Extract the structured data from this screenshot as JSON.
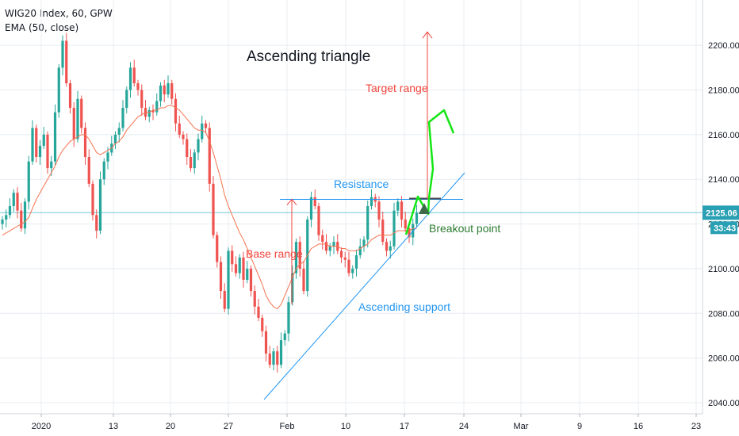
{
  "legend": {
    "symbol": "WIG20 Index, 60, GPW",
    "indicator": "EMA (50, close)"
  },
  "colors": {
    "up": "#26a69a",
    "down": "#ef5350",
    "ema": "#f4734f",
    "grid": "#e8ecf1",
    "axis_text": "#131722",
    "price_line": "#73c9d6",
    "price_tag": "#2aa0b4",
    "annotation_red": "#f2453d",
    "annotation_blue": "#2196f3",
    "projection_green": "#14e614",
    "breakout_text": "#2e7d32"
  },
  "chart_data": {
    "type": "candlestick",
    "title": "Ascending triangle",
    "symbol": "WIG20 Index, 60, GPW",
    "ylim": [
      2035,
      2225
    ],
    "yticks": [
      2040,
      2060,
      2080,
      2100,
      2120,
      2140,
      2160,
      2180,
      2200
    ],
    "xticks": [
      "2020",
      "13",
      "20",
      "27",
      "Feb",
      "10",
      "17",
      "24",
      "Mar",
      "9",
      "16",
      "23"
    ],
    "last_price": "2125.06",
    "countdown": "33:43",
    "closes": [
      2122,
      2124,
      2128,
      2134,
      2126,
      2118,
      2130,
      2148,
      2163,
      2150,
      2155,
      2160,
      2145,
      2148,
      2170,
      2190,
      2202,
      2183,
      2172,
      2158,
      2176,
      2163,
      2150,
      2138,
      2124,
      2117,
      2140,
      2148,
      2152,
      2156,
      2160,
      2163,
      2172,
      2180,
      2190,
      2183,
      2180,
      2172,
      2168,
      2171,
      2170,
      2175,
      2182,
      2178,
      2183,
      2176,
      2165,
      2160,
      2158,
      2150,
      2145,
      2152,
      2158,
      2165,
      2163,
      2138,
      2115,
      2103,
      2090,
      2082,
      2108,
      2102,
      2098,
      2105,
      2095,
      2100,
      2090,
      2083,
      2078,
      2072,
      2062,
      2057,
      2063,
      2057,
      2068,
      2071,
      2085,
      2098,
      2112,
      2100,
      2090,
      2122,
      2132,
      2128,
      2115,
      2112,
      2108,
      2110,
      2112,
      2108,
      2105,
      2104,
      2098,
      2100,
      2106,
      2110,
      2113,
      2128,
      2132,
      2130,
      2122,
      2112,
      2108,
      2110,
      2126,
      2130,
      2122,
      2118,
      2114,
      2120,
      2125
    ],
    "ema50": [
      2115,
      2116,
      2117,
      2118,
      2119,
      2120,
      2121,
      2123,
      2127,
      2131,
      2134,
      2137,
      2140,
      2143,
      2146,
      2150,
      2153,
      2155,
      2157,
      2158,
      2159,
      2160,
      2160,
      2158,
      2155,
      2152,
      2151,
      2152,
      2153,
      2154,
      2156,
      2157,
      2159,
      2162,
      2164,
      2166,
      2168,
      2169,
      2170,
      2170,
      2171,
      2171,
      2172,
      2172,
      2173,
      2173,
      2172,
      2171,
      2169,
      2167,
      2165,
      2163,
      2162,
      2162,
      2161,
      2157,
      2152,
      2146,
      2140,
      2133,
      2128,
      2124,
      2120,
      2116,
      2113,
      2109,
      2105,
      2101,
      2097,
      2093,
      2088,
      2085,
      2083,
      2082,
      2084,
      2088,
      2092,
      2096,
      2100,
      2102,
      2103,
      2106,
      2109,
      2110,
      2111,
      2111,
      2111,
      2110,
      2110,
      2110,
      2109,
      2109,
      2108,
      2108,
      2108,
      2109,
      2110,
      2111,
      2113,
      2114,
      2115,
      2115,
      2115,
      2115,
      2116,
      2117,
      2117,
      2117,
      2117,
      2118,
      2118
    ],
    "annotations": {
      "title": "Ascending triangle",
      "resistance": "Resistance",
      "base_range": "Base range",
      "target_range": "Target range",
      "ascending_support": "Ascending support",
      "breakout_point": "Breakout point"
    },
    "levels": {
      "resistance": 2131,
      "base_range_from": 2084,
      "base_range_to": 2131,
      "target_range_from": 2131,
      "target_range_to": 2206
    }
  }
}
